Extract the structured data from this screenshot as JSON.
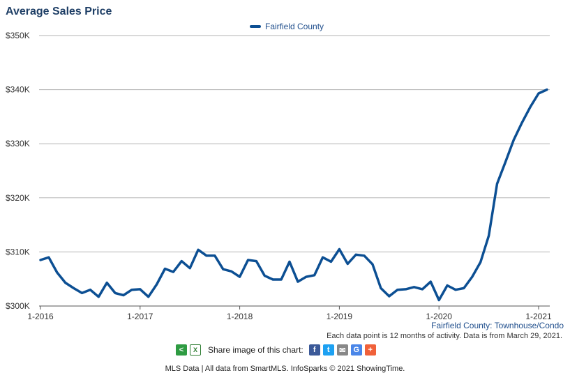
{
  "title": "Average Sales Price",
  "subtitle": "Fairfield County: Townhouse/Condo",
  "note": "Each data point is 12 months of activity. Data is from March 29, 2021.",
  "share_label": "Share image of this chart:",
  "footer": "MLS Data | All data from SmartMLS. InfoSparks © 2021 ShowingTime.",
  "colors": {
    "series": "#0c4f93",
    "title": "#1f3f66",
    "grid": "#b3b3b3"
  },
  "share_icons": [
    "share-icon",
    "excel-icon",
    "facebook-icon",
    "twitter-icon",
    "email-icon",
    "google-icon",
    "plus-icon"
  ],
  "chart_data": {
    "type": "line",
    "x_start": "2016-01",
    "x_tick_labels": [
      "1-2016",
      "1-2017",
      "1-2018",
      "1-2019",
      "1-2020",
      "1-2021"
    ],
    "y_tick_labels": [
      "$300K",
      "$310K",
      "$320K",
      "$330K",
      "$340K",
      "$350K"
    ],
    "ylim": [
      300000,
      350000
    ],
    "grid": true,
    "legend_position": "top-center",
    "series": [
      {
        "name": "Fairfield County",
        "values": [
          308500,
          309000,
          306200,
          304300,
          303300,
          302400,
          303000,
          301700,
          304300,
          302400,
          302000,
          303000,
          303100,
          301700,
          304000,
          306900,
          306300,
          308300,
          307000,
          310400,
          309300,
          309300,
          306800,
          306400,
          305400,
          308500,
          308300,
          305600,
          304900,
          304900,
          308200,
          304500,
          305400,
          305700,
          309000,
          308200,
          310500,
          307800,
          309500,
          309300,
          307700,
          303300,
          301800,
          303000,
          303100,
          303500,
          303100,
          304500,
          301100,
          303800,
          303000,
          303300,
          305400,
          308100,
          313000,
          322600,
          326600,
          330700,
          333900,
          336800,
          339300,
          340000
        ]
      }
    ]
  }
}
